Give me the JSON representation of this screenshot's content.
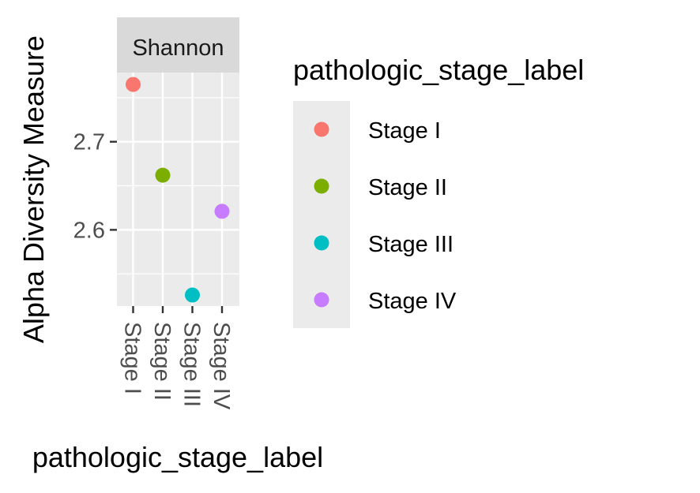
{
  "chart_data": {
    "type": "scatter",
    "facet_label": "Shannon",
    "ylabel": "Alpha Diversity Measure",
    "xlabel": "pathologic_stage_label",
    "categories": [
      "Stage I",
      "Stage II",
      "Stage III",
      "Stage IV"
    ],
    "values": [
      2.765,
      2.662,
      2.526,
      2.621
    ],
    "colors": [
      "#F8766D",
      "#7CAE00",
      "#00BFC4",
      "#C77CFF"
    ],
    "y_ticks": [
      2.6,
      2.7
    ],
    "y_tick_labels": [
      "2.6",
      "2.7"
    ],
    "ylim": [
      2.5135,
      2.7785
    ],
    "grid": true,
    "legend": {
      "title": "pathologic_stage_label",
      "position": "right",
      "entries": [
        "Stage I",
        "Stage II",
        "Stage III",
        "Stage IV"
      ]
    }
  }
}
